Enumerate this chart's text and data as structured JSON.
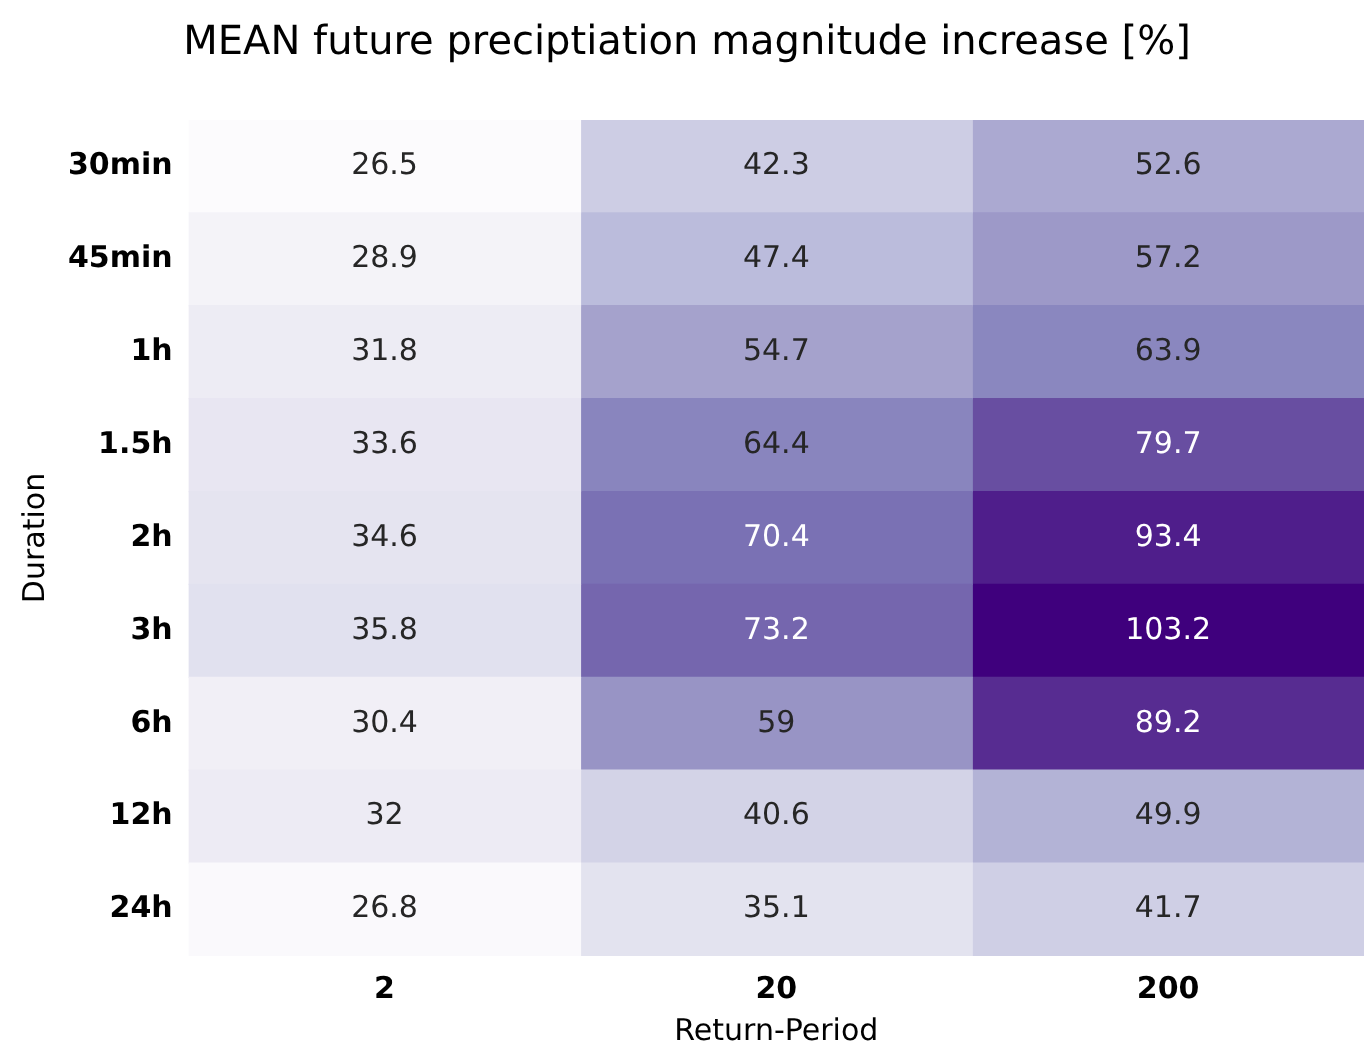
{
  "chart_data": {
    "type": "heatmap",
    "title": "MEAN future preciptiation magnitude increase [%]",
    "xlabel": "Return-Period",
    "ylabel": "Duration",
    "categories": [
      "2",
      "20",
      "200"
    ],
    "y_categories": [
      "30min",
      "45min",
      "1h",
      "1.5h",
      "2h",
      "3h",
      "6h",
      "12h",
      "24h"
    ],
    "cells": [
      [
        26.5,
        42.3,
        52.6
      ],
      [
        28.9,
        47.4,
        57.2
      ],
      [
        31.8,
        54.7,
        63.9
      ],
      [
        33.6,
        64.4,
        79.7
      ],
      [
        34.6,
        70.4,
        93.4
      ],
      [
        35.8,
        73.2,
        103.2
      ],
      [
        30.4,
        59,
        89.2
      ],
      [
        32,
        40.6,
        49.9
      ],
      [
        26.8,
        35.1,
        41.7
      ]
    ],
    "data_labels": true
  }
}
